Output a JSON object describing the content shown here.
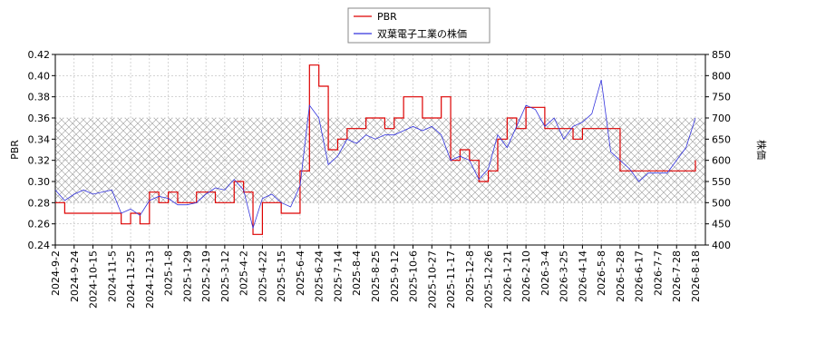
{
  "chart_data": {
    "type": "line",
    "step": true,
    "categories": [
      "2024-9-2",
      null,
      "2024-9-24",
      null,
      "2024-10-15",
      null,
      "2024-11-5",
      null,
      "2024-11-25",
      null,
      "2024-12-13",
      null,
      "2025-1-8",
      null,
      "2025-1-29",
      null,
      "2025-2-19",
      null,
      "2025-3-12",
      null,
      "2025-4-2",
      null,
      "2025-4-22",
      null,
      "2025-5-15",
      null,
      "2025-6-4",
      null,
      "2025-6-24",
      null,
      "2025-7-14",
      null,
      "2025-8-4",
      null,
      "2025-8-25",
      null,
      "2025-9-12",
      null,
      "2025-10-6",
      null,
      "2025-10-27",
      null,
      "2025-11-17",
      null,
      "2025-12-8",
      null,
      "2025-12-26",
      null,
      "2026-1-21",
      null,
      "2026-2-10",
      null,
      "2026-3-4",
      null,
      "2026-3-25",
      null,
      "2026-4-14",
      null,
      "2026-5-8",
      null,
      "2026-5-28",
      null,
      "2026-6-17",
      null,
      "2026-7-7",
      null,
      "2026-7-28",
      null,
      "2026-8-18"
    ],
    "series": [
      {
        "name": "PBR",
        "color": "#dd0000",
        "axis": "y",
        "values": [
          0.28,
          0.27,
          0.27,
          0.27,
          0.27,
          0.27,
          0.27,
          0.26,
          0.27,
          0.26,
          0.29,
          0.28,
          0.29,
          0.28,
          0.28,
          0.29,
          0.29,
          0.28,
          0.28,
          0.3,
          0.29,
          0.25,
          0.28,
          0.28,
          0.27,
          0.27,
          0.31,
          0.41,
          0.39,
          0.33,
          0.34,
          0.35,
          0.35,
          0.36,
          0.36,
          0.35,
          0.36,
          0.38,
          0.38,
          0.36,
          0.36,
          0.38,
          0.32,
          0.33,
          0.32,
          0.3,
          0.31,
          0.34,
          0.36,
          0.35,
          0.37,
          0.37,
          0.35,
          0.35,
          0.35,
          0.34,
          0.35,
          0.35,
          0.35,
          0.35,
          0.31,
          0.31,
          0.31,
          0.31,
          0.31,
          0.31,
          0.31,
          0.31,
          0.32
        ]
      },
      {
        "name": "双葉電子工業の株価",
        "color": "#3333dd",
        "axis": "y2",
        "values": [
          530,
          505,
          520,
          530,
          520,
          525,
          530,
          475,
          485,
          470,
          505,
          515,
          510,
          495,
          495,
          500,
          520,
          535,
          530,
          555,
          530,
          440,
          510,
          520,
          500,
          490,
          540,
          730,
          700,
          590,
          610,
          650,
          640,
          660,
          650,
          660,
          660,
          670,
          680,
          670,
          680,
          660,
          600,
          610,
          600,
          555,
          580,
          660,
          630,
          680,
          730,
          720,
          680,
          700,
          650,
          680,
          690,
          710,
          790,
          620,
          600,
          580,
          550,
          570,
          570,
          570,
          600,
          630,
          700
        ]
      }
    ],
    "ylabel": "PBR",
    "y2label": "株価",
    "ylim": [
      0.24,
      0.42
    ],
    "yticks": [
      0.24,
      0.26,
      0.28,
      {
        "value": 0.3,
        "label": "0.30"
      },
      0.32,
      0.34,
      0.36,
      0.38,
      {
        "value": 0.4,
        "label": "0.40"
      },
      0.42
    ],
    "y2lim": [
      400,
      850
    ],
    "y2ticks": [
      400,
      450,
      500,
      550,
      600,
      650,
      700,
      750,
      800,
      850
    ],
    "shaded_range": [
      0.28,
      0.36
    ],
    "grid": true
  }
}
